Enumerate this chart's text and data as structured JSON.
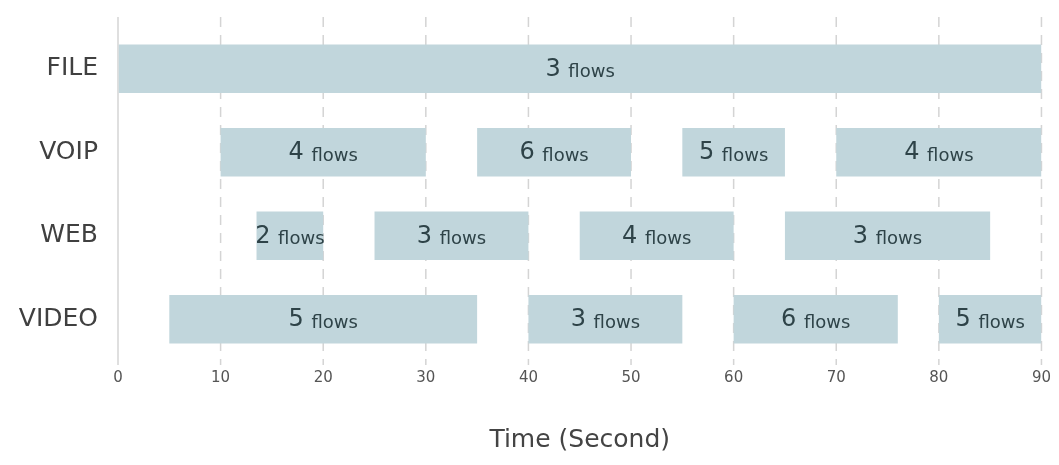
{
  "chart_data": {
    "type": "bar",
    "orientation": "horizontal",
    "xlabel": "Time (Second)",
    "categories": [
      "FILE",
      "VOIP",
      "WEB",
      "VIDEO"
    ],
    "xlim": [
      0,
      90
    ],
    "xticks": [
      0,
      10,
      20,
      30,
      40,
      50,
      60,
      70,
      80,
      90
    ],
    "grid": "x",
    "series": [
      {
        "color": "#c1d6dc",
        "base": [
          0,
          10,
          13.5,
          5
        ],
        "values": [
          90,
          20,
          6.5,
          30
        ]
      },
      {
        "color": "#c1d6dc",
        "base": [
          null,
          35,
          25,
          40
        ],
        "values": [
          null,
          15,
          15,
          15
        ]
      },
      {
        "color": "#c1d6dc",
        "base": [
          null,
          55,
          45,
          60
        ],
        "values": [
          null,
          10,
          15,
          16
        ]
      },
      {
        "color": "#c1d6dc",
        "base": [
          null,
          70,
          65,
          80
        ],
        "values": [
          null,
          20,
          20,
          10
        ]
      }
    ],
    "annotations": [
      "3 flows",
      "4 flows",
      "6 flows",
      "5 flows",
      "4 flows",
      "2 flows",
      "3 flows",
      "4 flows",
      "3 flows",
      "5 flows",
      "3 flows",
      "6 flows",
      "5 flows"
    ]
  }
}
